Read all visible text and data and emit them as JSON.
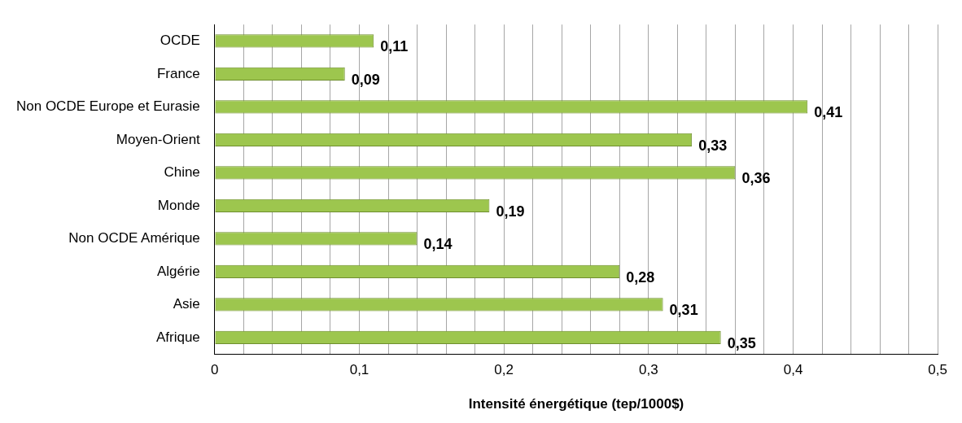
{
  "chart_data": {
    "type": "bar",
    "orientation": "horizontal",
    "xlabel": "Intensité énergétique (tep/1000$)",
    "categories": [
      "OCDE",
      "France",
      "Non OCDE Europe et Eurasie",
      "Moyen-Orient",
      "Chine",
      "Monde",
      "Non OCDE Amérique",
      "Algérie",
      "Asie",
      "Afrique"
    ],
    "values": [
      0.11,
      0.09,
      0.41,
      0.33,
      0.36,
      0.19,
      0.14,
      0.28,
      0.31,
      0.35
    ],
    "value_labels": [
      "0,11",
      "0,09",
      "0,41",
      "0,33",
      "0,36",
      "0,19",
      "0,14",
      "0,28",
      "0,31",
      "0,35"
    ],
    "color": "#9dc64e",
    "xlim": [
      0,
      0.5
    ],
    "xticks": [
      0,
      {
        "value": 0.02,
        "label": null
      },
      {
        "value": 0.04,
        "label": null
      },
      {
        "value": 0.06,
        "label": null
      },
      {
        "value": 0.08,
        "label": null
      },
      {
        "value": 0.1,
        "label": "0,1"
      },
      {
        "value": 0.12,
        "label": null
      },
      {
        "value": 0.14,
        "label": null
      },
      {
        "value": 0.16,
        "label": null
      },
      {
        "value": 0.18,
        "label": null
      },
      {
        "value": 0.2,
        "label": "0,2"
      },
      {
        "value": 0.22,
        "label": null
      },
      {
        "value": 0.24,
        "label": null
      },
      {
        "value": 0.26,
        "label": null
      },
      {
        "value": 0.28,
        "label": null
      },
      {
        "value": 0.3,
        "label": "0,3"
      },
      {
        "value": 0.32,
        "label": null
      },
      {
        "value": 0.34,
        "label": null
      },
      {
        "value": 0.36,
        "label": null
      },
      {
        "value": 0.38,
        "label": null
      },
      {
        "value": 0.4,
        "label": "0,4"
      },
      {
        "value": 0.42,
        "label": null
      },
      {
        "value": 0.44,
        "label": null
      },
      {
        "value": 0.46,
        "label": null
      },
      {
        "value": 0.48,
        "label": null
      },
      {
        "value": 0.5,
        "label": "0,5"
      }
    ],
    "grid": "x",
    "legend": false
  }
}
